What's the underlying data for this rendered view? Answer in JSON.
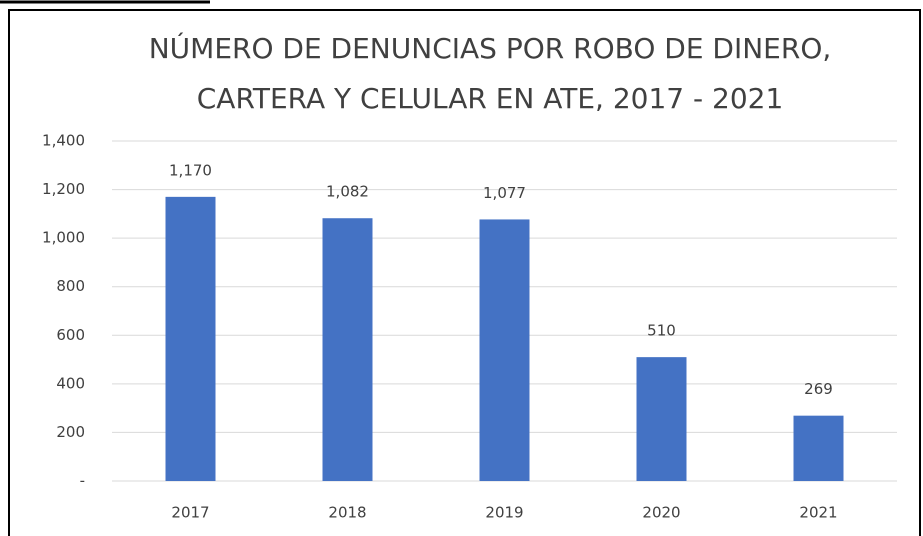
{
  "chart_data": {
    "type": "bar",
    "title": [
      "NÚMERO DE DENUNCIAS POR ROBO DE DINERO,",
      "CARTERA  Y CELULAR EN ATE, 2017 - 2021"
    ],
    "categories": [
      "2017",
      "2018",
      "2019",
      "2020",
      "2021"
    ],
    "values": [
      1170,
      1082,
      1077,
      510,
      269
    ],
    "value_labels": [
      "1,170",
      "1,082",
      "1,077",
      "510",
      "269"
    ],
    "color": "#4472c4",
    "ylim": [
      0,
      1400
    ],
    "yticks": [
      {
        "value": 0,
        "label": "-"
      },
      200,
      400,
      600,
      800,
      {
        "value": 1000,
        "label": "1,000"
      },
      {
        "value": 1200,
        "label": "1,200"
      },
      {
        "value": 1400,
        "label": "1,400"
      }
    ],
    "grid": true
  }
}
